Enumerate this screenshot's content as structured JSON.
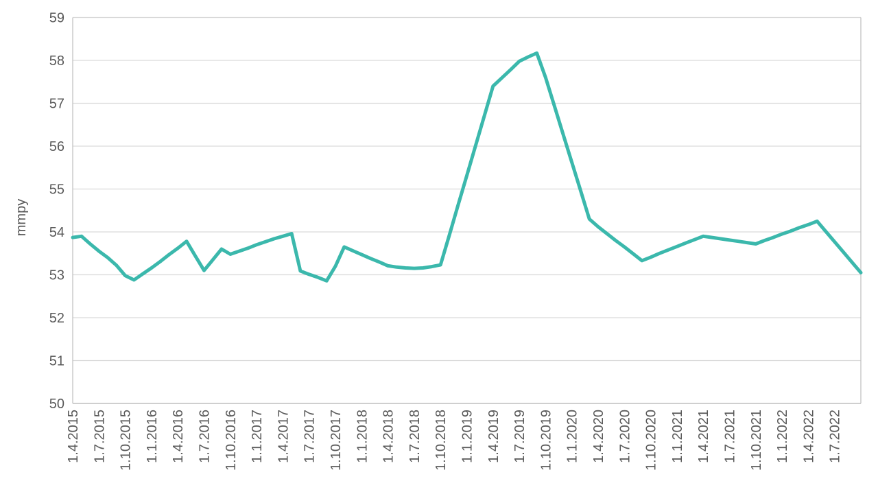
{
  "chart_data": {
    "type": "line",
    "title": "",
    "xlabel": "",
    "ylabel": "mmpy",
    "ylim": [
      50,
      59
    ],
    "y_ticks": [
      50,
      51,
      52,
      53,
      54,
      55,
      56,
      57,
      58,
      59
    ],
    "grid": "horizontal",
    "legend": "none",
    "x_tick_interval": 3,
    "x_tick_count": 30,
    "x": [
      "1.4.2015",
      "1.5.2015",
      "1.6.2015",
      "1.7.2015",
      "1.8.2015",
      "1.9.2015",
      "1.10.2015",
      "1.11.2015",
      "1.12.2015",
      "1.1.2016",
      "1.2.2016",
      "1.3.2016",
      "1.4.2016",
      "1.5.2016",
      "1.6.2016",
      "1.7.2016",
      "1.8.2016",
      "1.9.2016",
      "1.10.2016",
      "1.11.2016",
      "1.12.2016",
      "1.1.2017",
      "1.2.2017",
      "1.3.2017",
      "1.4.2017",
      "1.5.2017",
      "1.6.2017",
      "1.7.2017",
      "1.8.2017",
      "1.9.2017",
      "1.10.2017",
      "1.11.2017",
      "1.12.2017",
      "1.1.2018",
      "1.2.2018",
      "1.3.2018",
      "1.4.2018",
      "1.5.2018",
      "1.6.2018",
      "1.7.2018",
      "1.8.2018",
      "1.9.2018",
      "1.10.2018",
      "1.11.2018",
      "1.12.2018",
      "1.1.2019",
      "1.2.2019",
      "1.3.2019",
      "1.4.2019",
      "1.5.2019",
      "1.6.2019",
      "1.7.2019",
      "1.8.2019",
      "1.9.2019",
      "1.10.2019",
      "1.11.2019",
      "1.12.2019",
      "1.1.2020",
      "1.2.2020",
      "1.3.2020",
      "1.4.2020",
      "1.5.2020",
      "1.6.2020",
      "1.7.2020",
      "1.8.2020",
      "1.9.2020",
      "1.10.2020",
      "1.11.2020",
      "1.12.2020",
      "1.1.2021",
      "1.2.2021",
      "1.3.2021",
      "1.4.2021",
      "1.5.2021",
      "1.6.2021",
      "1.7.2021",
      "1.8.2021",
      "1.9.2021",
      "1.10.2021",
      "1.11.2021",
      "1.12.2021",
      "1.1.2022",
      "1.2.2022",
      "1.3.2022",
      "1.4.2022",
      "1.5.2022",
      "1.6.2022",
      "1.7.2022",
      "1.8.2022",
      "1.9.2022",
      "1.10.2022"
    ],
    "series": [
      {
        "name": "mmpy",
        "values": [
          53.87,
          53.9,
          53.72,
          53.55,
          53.4,
          53.22,
          52.98,
          52.88,
          53.02,
          53.16,
          53.31,
          53.47,
          53.62,
          53.78,
          53.44,
          53.1,
          53.35,
          53.6,
          53.48,
          53.55,
          53.62,
          53.7,
          53.77,
          53.84,
          53.9,
          53.96,
          53.09,
          53.01,
          52.94,
          52.86,
          53.2,
          53.65,
          53.56,
          53.47,
          53.38,
          53.3,
          53.21,
          53.18,
          53.16,
          53.15,
          53.16,
          53.19,
          53.23,
          53.92,
          54.62,
          55.31,
          56.01,
          56.7,
          57.4,
          57.59,
          57.78,
          57.98,
          58.08,
          58.17,
          57.6,
          56.94,
          56.28,
          55.62,
          54.96,
          54.3,
          54.12,
          53.96,
          53.8,
          53.65,
          53.49,
          53.33,
          53.41,
          53.5,
          53.58,
          53.66,
          53.74,
          53.82,
          53.9,
          53.87,
          53.84,
          53.81,
          53.78,
          53.75,
          53.72,
          53.8,
          53.87,
          53.95,
          54.02,
          54.1,
          54.17,
          54.25,
          54.01,
          53.77,
          53.53,
          53.29,
          53.05
        ]
      }
    ],
    "colors": {
      "line": "#3bb8ac",
      "grid": "#d9d9d9",
      "axis": "#bfbfbf",
      "text": "#595959"
    }
  }
}
